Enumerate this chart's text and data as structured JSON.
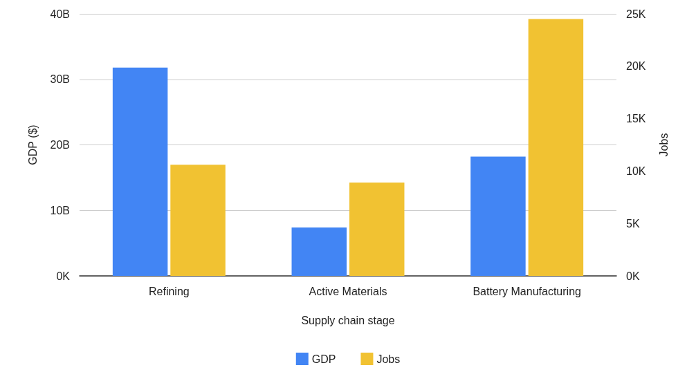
{
  "chart_data": {
    "type": "bar",
    "xlabel": "Supply chain stage",
    "ylabel": "GDP ($)",
    "y2label": "Jobs",
    "categories": [
      "Refining",
      "Active Materials",
      "Battery Manufacturing"
    ],
    "series": [
      {
        "name": "GDP",
        "color": "#4285f4",
        "values": [
          31800000000,
          7400000000,
          18200000000
        ]
      },
      {
        "name": "Jobs",
        "color": "#f1c232",
        "axis": "y2",
        "values": [
          10600,
          8900,
          24500
        ]
      }
    ],
    "ylim": [
      0,
      40000000000
    ],
    "yticks": [
      {
        "value": 0,
        "label": "0K"
      },
      {
        "value": 10000000000,
        "label": "10B"
      },
      {
        "value": 20000000000,
        "label": "20B"
      },
      {
        "value": 30000000000,
        "label": "30B"
      },
      {
        "value": 40000000000,
        "label": "40B"
      }
    ],
    "y2lim": [
      0,
      25000
    ],
    "y2ticks": [
      {
        "value": 0,
        "label": "0K"
      },
      {
        "value": 5000,
        "label": "5K"
      },
      {
        "value": 10000,
        "label": "10K"
      },
      {
        "value": 15000,
        "label": "15K"
      },
      {
        "value": 20000,
        "label": "20K"
      },
      {
        "value": 25000,
        "label": "25K"
      }
    ],
    "grid": "y",
    "legend": "bottom"
  }
}
